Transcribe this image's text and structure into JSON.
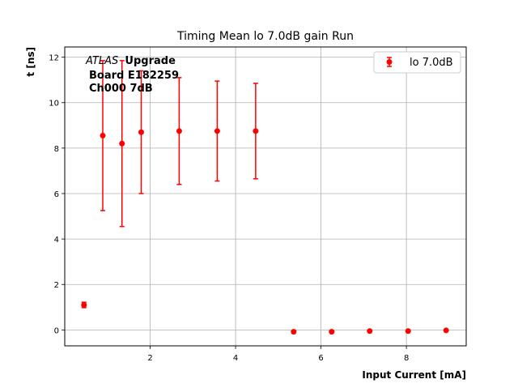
{
  "chart_data": {
    "type": "scatter",
    "title": "Timing Mean lo 7.0dB gain Run",
    "xlabel": "Input Current [mA]",
    "ylabel": "t [ns]",
    "xlim": [
      0.0,
      9.4
    ],
    "ylim": [
      -0.7,
      12.45
    ],
    "xticks": [
      2,
      4,
      6,
      8
    ],
    "yticks": [
      0,
      2,
      4,
      6,
      8,
      10,
      12
    ],
    "grid": true,
    "legend_position": "top-right",
    "annotation": {
      "atlas": "ATLAS",
      "upgrade": "Upgrade",
      "board": "Board E182259",
      "channel": "Ch000 7dB"
    },
    "series": [
      {
        "name": "lo 7.0dB",
        "color": "#ff0000",
        "x": [
          0.45,
          0.89,
          1.34,
          1.79,
          2.68,
          3.57,
          4.47,
          5.36,
          6.25,
          7.14,
          8.04,
          8.93
        ],
        "y": [
          1.1,
          8.55,
          8.2,
          8.7,
          8.75,
          8.75,
          8.75,
          -0.08,
          -0.08,
          -0.05,
          -0.05,
          -0.02
        ],
        "err": [
          0.12,
          3.3,
          3.65,
          2.7,
          2.35,
          2.2,
          2.1,
          0,
          0,
          0,
          0,
          0
        ]
      }
    ]
  }
}
